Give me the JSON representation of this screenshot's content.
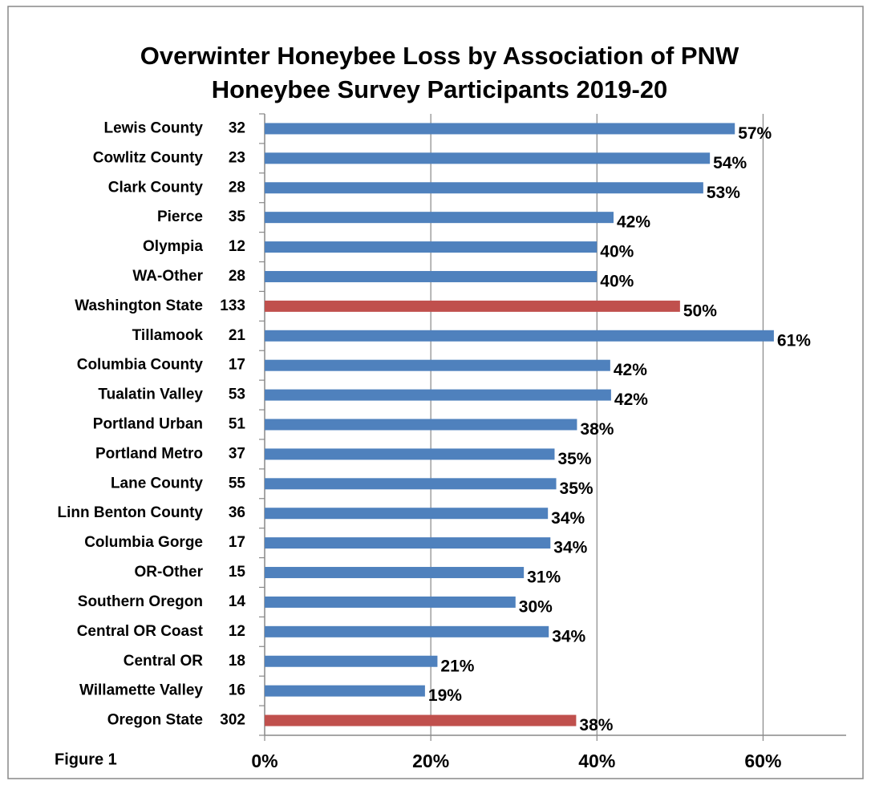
{
  "chart_data": {
    "type": "barh",
    "title": [
      "Overwinter Honeybee Loss by Association of PNW",
      "Honeybee Survey Participants 2019-20"
    ],
    "annotation": "Figure 1",
    "categories": [
      "Lewis County",
      "Cowlitz County",
      "Clark County",
      "Pierce",
      "Olympia",
      "WA-Other",
      "Washington State",
      "Tillamook",
      "Columbia County",
      "Tualatin Valley",
      "Portland Urban",
      "Portland Metro",
      "Lane County",
      "Linn Benton County",
      "Columbia Gorge",
      "OR-Other",
      "Southern Oregon",
      "Central OR Coast",
      "Central OR",
      "Willamette Valley",
      "Oregon State"
    ],
    "participants": [
      32,
      23,
      28,
      35,
      12,
      28,
      133,
      21,
      17,
      53,
      51,
      37,
      55,
      36,
      17,
      15,
      14,
      12,
      18,
      16,
      302
    ],
    "values": [
      56.6,
      53.6,
      52.8,
      42.0,
      40.0,
      40.0,
      50.0,
      61.3,
      41.6,
      41.7,
      37.6,
      34.9,
      35.1,
      34.1,
      34.4,
      31.2,
      30.2,
      34.2,
      20.8,
      19.3,
      37.5
    ],
    "value_labels": [
      "57%",
      "54%",
      "53%",
      "42%",
      "40%",
      "40%",
      "50%",
      "61%",
      "42%",
      "42%",
      "38%",
      "35%",
      "35%",
      "34%",
      "34%",
      "31%",
      "30%",
      "34%",
      "21%",
      "19%",
      "38%"
    ],
    "colors": [
      "#4f81bd",
      "#4f81bd",
      "#4f81bd",
      "#4f81bd",
      "#4f81bd",
      "#4f81bd",
      "#c0504d",
      "#4f81bd",
      "#4f81bd",
      "#4f81bd",
      "#4f81bd",
      "#4f81bd",
      "#4f81bd",
      "#4f81bd",
      "#4f81bd",
      "#4f81bd",
      "#4f81bd",
      "#4f81bd",
      "#4f81bd",
      "#4f81bd",
      "#c0504d"
    ],
    "xlim": [
      0,
      70
    ],
    "xticks": [
      {
        "value": 0,
        "label": "0%"
      },
      {
        "value": 20,
        "label": "20%"
      },
      {
        "value": 40,
        "label": "40%"
      },
      {
        "value": 60,
        "label": "60%"
      }
    ],
    "grid": true
  }
}
